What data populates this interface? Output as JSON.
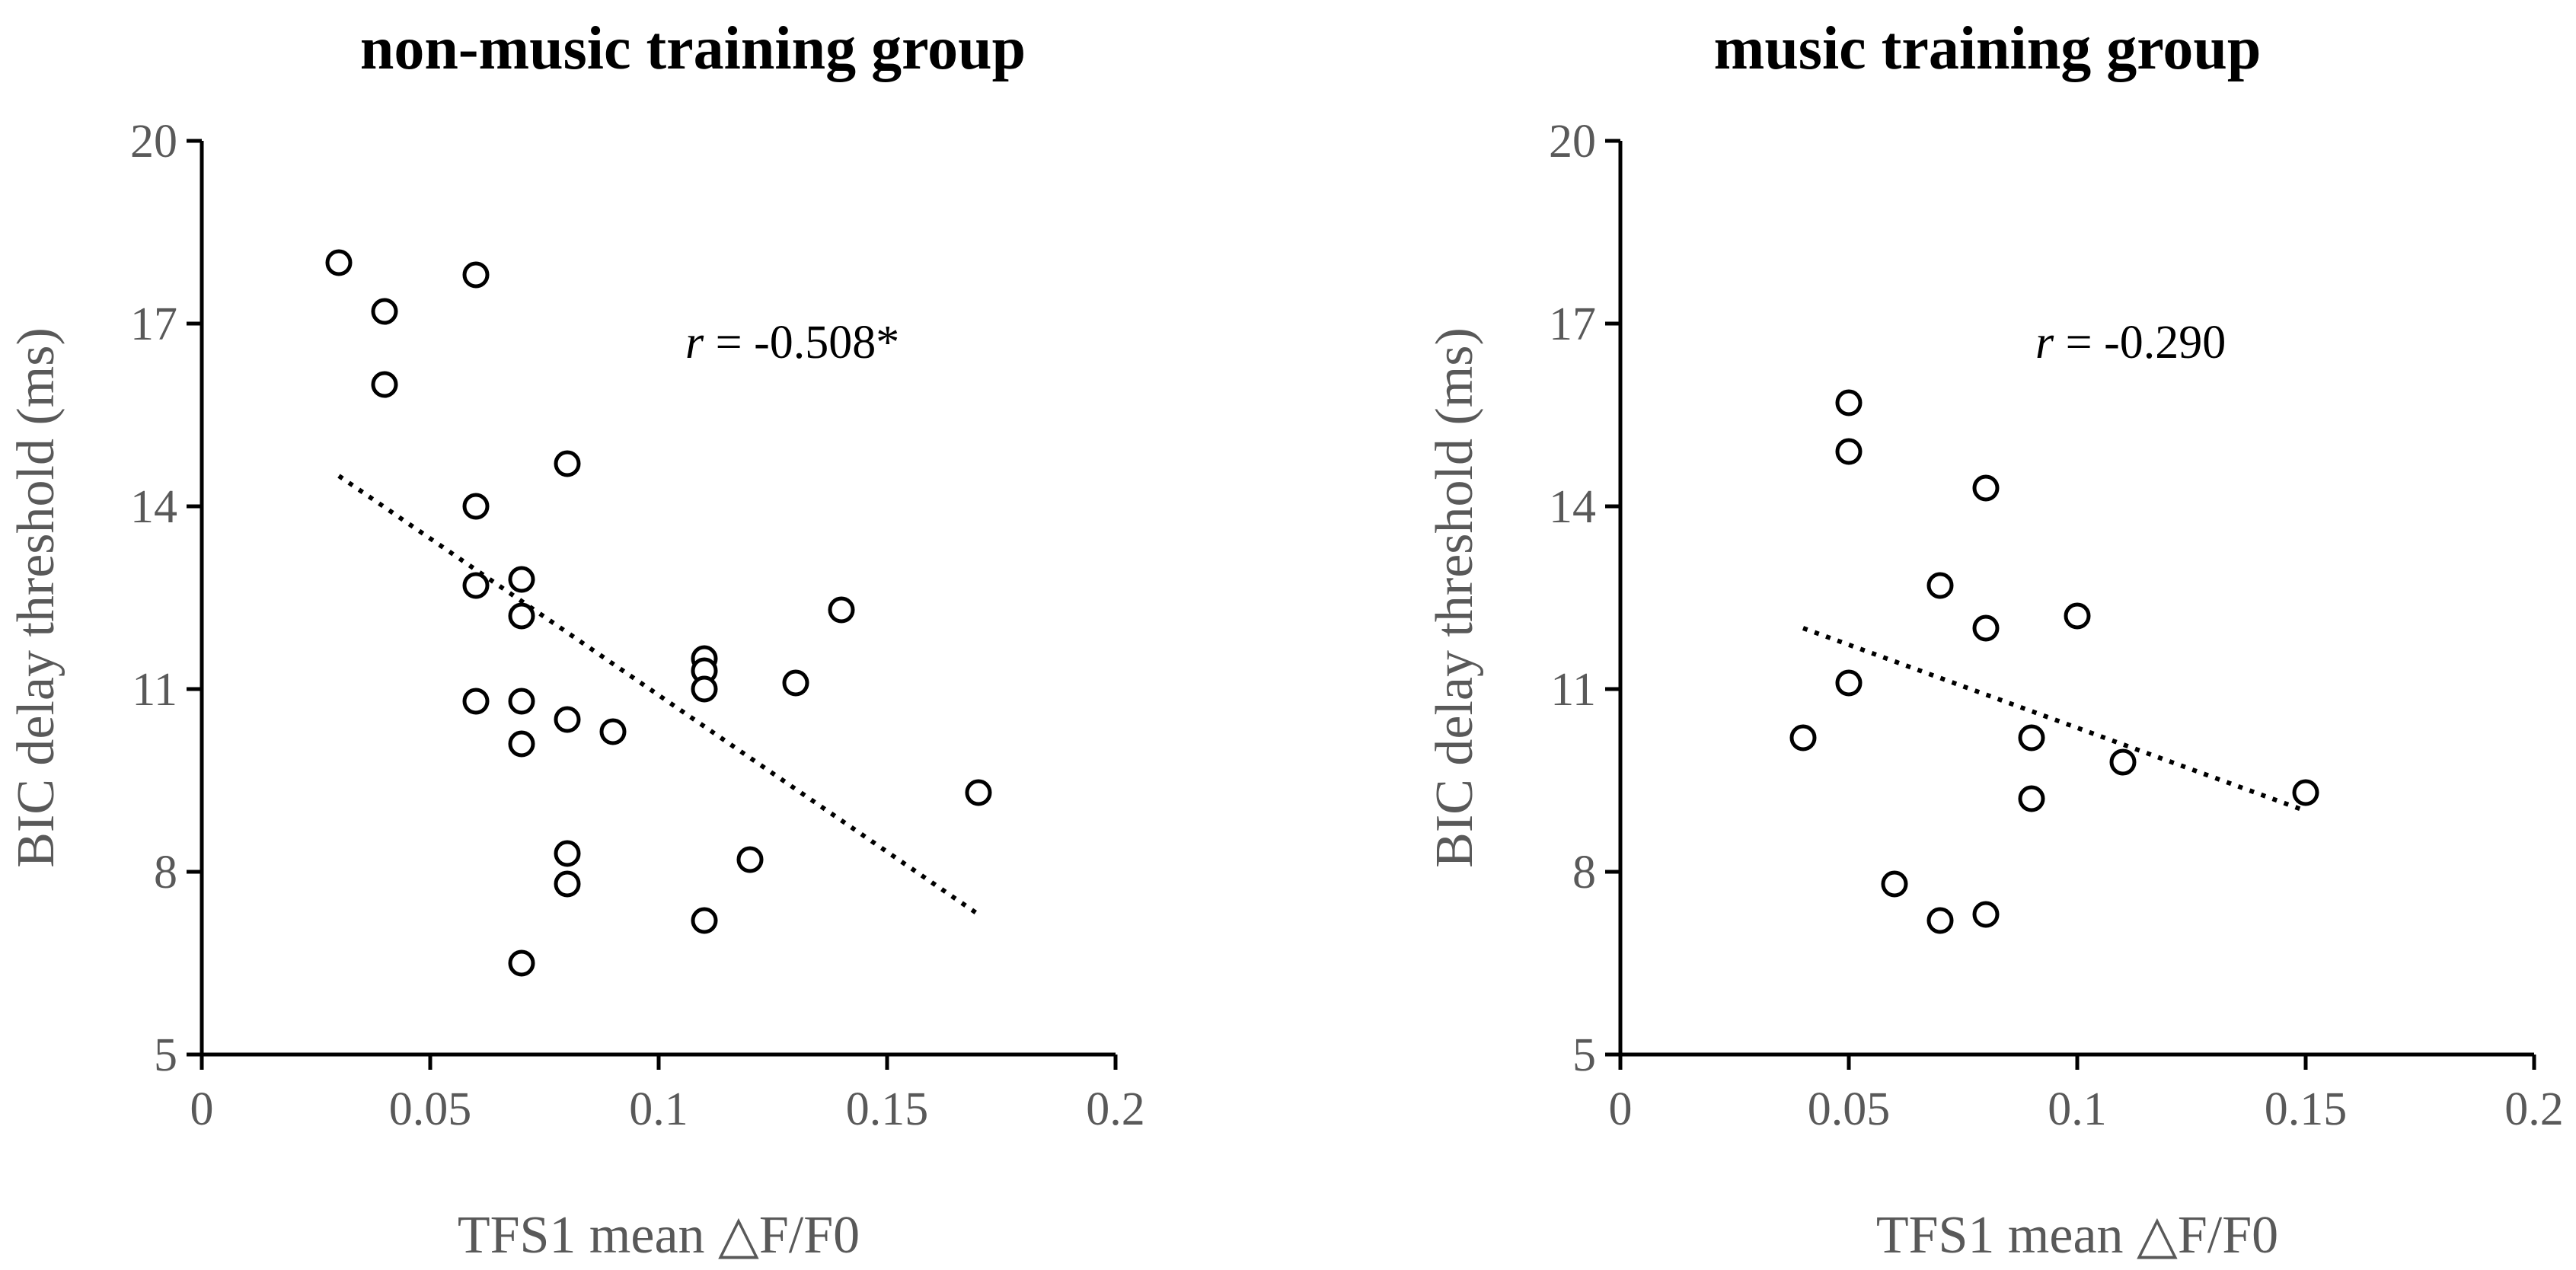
{
  "chart_data": [
    {
      "type": "scatter",
      "title": "non-music training group",
      "xlabel": "TFS1 mean △F/F0",
      "ylabel": "BIC delay threshold (ms)",
      "xlim": [
        0,
        0.2
      ],
      "ylim": [
        5,
        20
      ],
      "x_ticks": [
        "0",
        "0.05",
        "0.1",
        "0.15",
        "0.2"
      ],
      "y_ticks": [
        "5",
        "8",
        "11",
        "14",
        "17",
        "20"
      ],
      "annotation": {
        "italic": "r",
        "text": " = -0.508*"
      },
      "trendline": {
        "style": "dotted",
        "x": [
          0.03,
          0.17
        ],
        "y": [
          14.5,
          7.3
        ]
      },
      "legend": "none",
      "grid": false,
      "points": [
        {
          "x": 0.03,
          "y": 18.0
        },
        {
          "x": 0.04,
          "y": 17.2
        },
        {
          "x": 0.04,
          "y": 16.0
        },
        {
          "x": 0.06,
          "y": 17.8
        },
        {
          "x": 0.06,
          "y": 14.0
        },
        {
          "x": 0.06,
          "y": 12.7
        },
        {
          "x": 0.06,
          "y": 10.8
        },
        {
          "x": 0.07,
          "y": 12.8
        },
        {
          "x": 0.07,
          "y": 12.2
        },
        {
          "x": 0.07,
          "y": 10.8
        },
        {
          "x": 0.07,
          "y": 10.1
        },
        {
          "x": 0.07,
          "y": 6.5
        },
        {
          "x": 0.08,
          "y": 14.7
        },
        {
          "x": 0.08,
          "y": 10.5
        },
        {
          "x": 0.08,
          "y": 8.3
        },
        {
          "x": 0.08,
          "y": 7.8
        },
        {
          "x": 0.09,
          "y": 10.3
        },
        {
          "x": 0.11,
          "y": 11.5
        },
        {
          "x": 0.11,
          "y": 11.3
        },
        {
          "x": 0.11,
          "y": 11.0
        },
        {
          "x": 0.11,
          "y": 7.2
        },
        {
          "x": 0.12,
          "y": 8.2
        },
        {
          "x": 0.13,
          "y": 11.1
        },
        {
          "x": 0.14,
          "y": 12.3
        },
        {
          "x": 0.17,
          "y": 9.3
        }
      ]
    },
    {
      "type": "scatter",
      "title": "music training group",
      "xlabel": "TFS1 mean △F/F0",
      "ylabel": "BIC delay threshold (ms)",
      "xlim": [
        0,
        0.2
      ],
      "ylim": [
        5,
        20
      ],
      "x_ticks": [
        "0",
        "0.05",
        "0.1",
        "0.15",
        "0.2"
      ],
      "y_ticks": [
        "5",
        "8",
        "11",
        "14",
        "17",
        "20"
      ],
      "annotation": {
        "italic": "r",
        "text": " = -0.290"
      },
      "trendline": {
        "style": "dotted",
        "x": [
          0.04,
          0.15
        ],
        "y": [
          12.0,
          9.0
        ]
      },
      "legend": "none",
      "grid": false,
      "points": [
        {
          "x": 0.04,
          "y": 10.2
        },
        {
          "x": 0.05,
          "y": 15.7
        },
        {
          "x": 0.05,
          "y": 14.9
        },
        {
          "x": 0.05,
          "y": 11.1
        },
        {
          "x": 0.06,
          "y": 7.8
        },
        {
          "x": 0.07,
          "y": 12.7
        },
        {
          "x": 0.07,
          "y": 7.2
        },
        {
          "x": 0.08,
          "y": 14.3
        },
        {
          "x": 0.08,
          "y": 12.0
        },
        {
          "x": 0.08,
          "y": 7.3
        },
        {
          "x": 0.09,
          "y": 10.2
        },
        {
          "x": 0.09,
          "y": 9.2
        },
        {
          "x": 0.1,
          "y": 12.2
        },
        {
          "x": 0.11,
          "y": 9.8
        },
        {
          "x": 0.15,
          "y": 9.3
        }
      ]
    }
  ]
}
